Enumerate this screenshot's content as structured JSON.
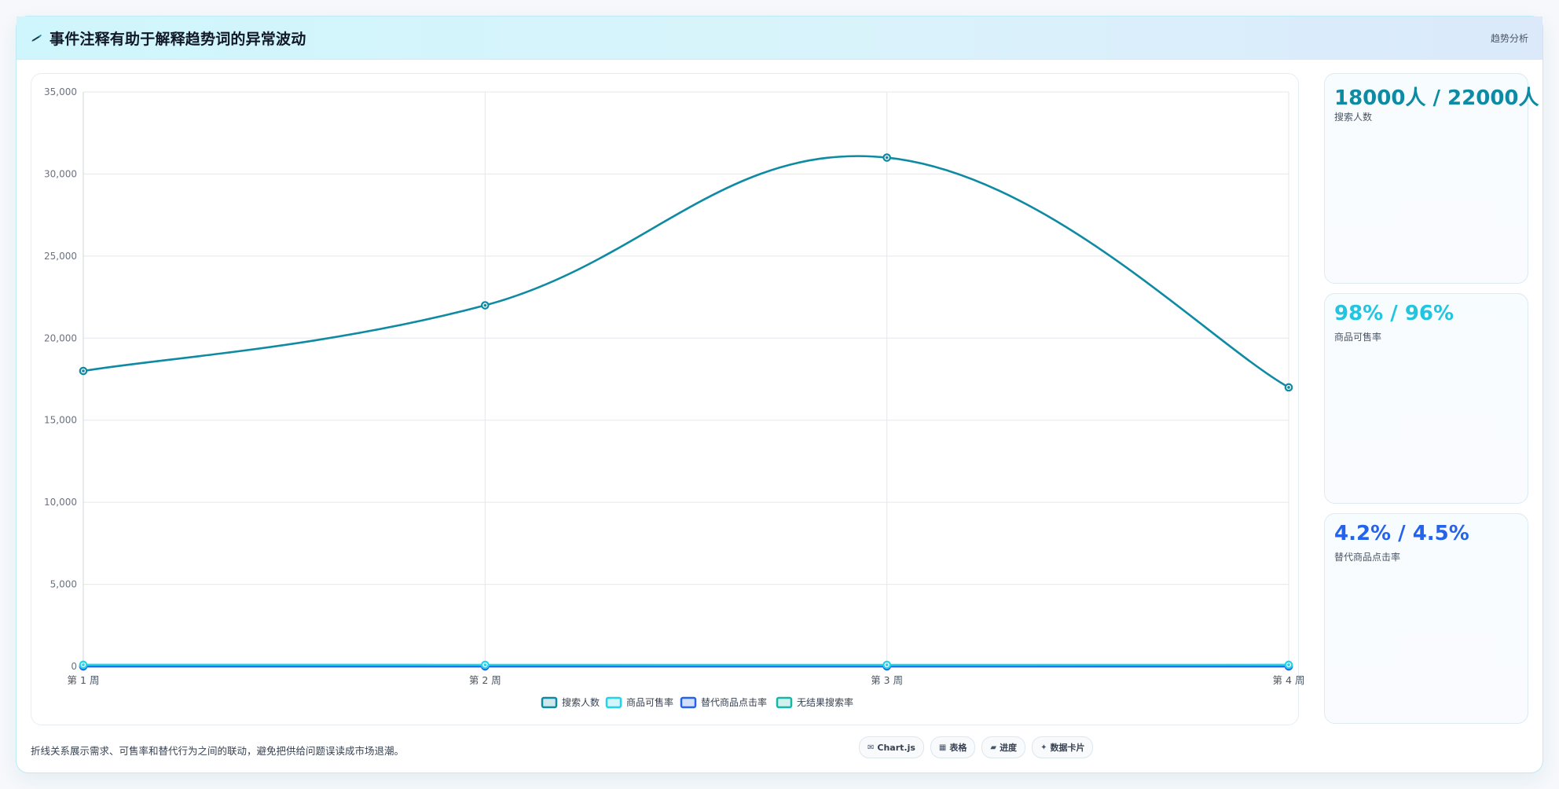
{
  "header": {
    "title": "事件注释有助于解释趋势词的异常波动",
    "tag": "趋势分析",
    "icon": "pen-icon"
  },
  "chart_data": {
    "type": "line",
    "categories": [
      "第 1 周",
      "第 2 周",
      "第 3 周",
      "第 4 周"
    ],
    "ylim": [
      0,
      35000
    ],
    "yticks": [
      0,
      5000,
      10000,
      15000,
      20000,
      25000,
      30000,
      35000
    ],
    "ytick_labels": [
      "0",
      "5,000",
      "10,000",
      "15,000",
      "20,000",
      "25,000",
      "30,000",
      "35,000"
    ],
    "grid": true,
    "legend_position": "bottom",
    "series": [
      {
        "name": "搜索人数",
        "values": [
          18000,
          22000,
          31000,
          17000
        ],
        "color": "#0e8aa3"
      },
      {
        "name": "商品可售率",
        "values": [
          98,
          96,
          94,
          97
        ],
        "color": "#22d3ee"
      },
      {
        "name": "替代商品点击率",
        "values": [
          4.2,
          4.5,
          5.1,
          3.9
        ],
        "color": "#2563eb"
      },
      {
        "name": "无结果搜索率",
        "values": [
          2.1,
          2.4,
          3.0,
          2.2
        ],
        "color": "#14b8a6"
      }
    ]
  },
  "stats": [
    {
      "value": "18000人 / 22000人",
      "label": "搜索人数",
      "color": "#0e8aa3"
    },
    {
      "value": "98% / 96%",
      "label": "商品可售率",
      "color": "#22c5e0"
    },
    {
      "value": "4.2% / 4.5%",
      "label": "替代商品点击率",
      "color": "#2563eb"
    }
  ],
  "footer": {
    "note": "折线关系展示需求、可售率和替代行为之间的联动，避免把供给问题误读成市场退潮。",
    "pills": [
      {
        "icon": "envelope-icon",
        "glyph": "✉",
        "label": "Chart.js"
      },
      {
        "icon": "table-icon",
        "glyph": "▦",
        "label": "表格"
      },
      {
        "icon": "progress-icon",
        "glyph": "▰",
        "label": "进度"
      },
      {
        "icon": "sparkle-icon",
        "glyph": "✦",
        "label": "数据卡片"
      }
    ]
  }
}
